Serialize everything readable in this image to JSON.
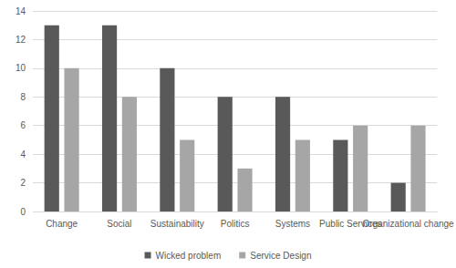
{
  "chart_data": {
    "type": "bar",
    "categories": [
      "Change",
      "Social",
      "Sustainability",
      "Politics",
      "Systems",
      "Public Services",
      "Organizational change"
    ],
    "series": [
      {
        "name": "Wicked problem",
        "color": "#595959",
        "values": [
          13,
          13,
          10,
          8,
          8,
          5,
          2
        ]
      },
      {
        "name": "Service Design",
        "color": "#a6a6a6",
        "values": [
          10,
          8,
          5,
          3,
          5,
          6,
          6
        ]
      }
    ],
    "ylim": [
      0,
      14
    ],
    "yticks": [
      0,
      2,
      4,
      6,
      8,
      10,
      12,
      14
    ],
    "grid": true,
    "legend": "bottom"
  }
}
